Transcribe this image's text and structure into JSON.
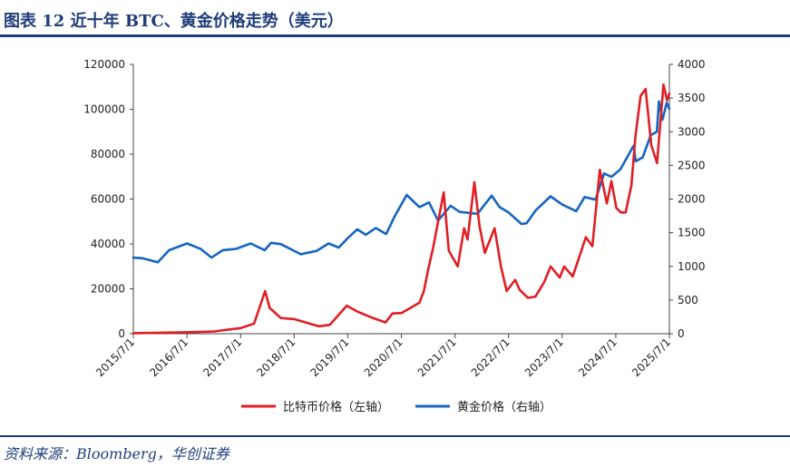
{
  "header": {
    "title": "图表  12    近十年 BTC、黄金价格走势（美元）"
  },
  "footer": {
    "source": "资料来源：Bloomberg，华创证券"
  },
  "colors": {
    "btc": "#e01e25",
    "gold": "#1565c0",
    "brand": "#1f3d7a"
  },
  "chart_data": {
    "type": "line",
    "legend_position": "bottom",
    "grid": false,
    "x_ticks": [
      "2015/7/1",
      "2016/7/1",
      "2017/7/1",
      "2018/7/1",
      "2019/7/1",
      "2020/7/1",
      "2021/7/1",
      "2022/7/1",
      "2023/7/1",
      "2024/7/1",
      "2025/7/1"
    ],
    "xlim": [
      "2015/7/1",
      "2025/7/1"
    ],
    "y_left": {
      "lim": [
        0,
        120000
      ],
      "ticks": [
        "0",
        "20000",
        "40000",
        "60000",
        "80000",
        "100000",
        "120000"
      ]
    },
    "y_right": {
      "lim": [
        0,
        4000
      ],
      "ticks": [
        "0",
        "500",
        "1000",
        "1500",
        "2000",
        "2500",
        "3000",
        "3500",
        "4000"
      ]
    },
    "series": [
      {
        "name": "比特币价格（左轴）",
        "axis": "left",
        "color": "#e01e25",
        "x": [
          "2015/7/1",
          "2016/1/1",
          "2016/7/1",
          "2017/1/1",
          "2017/7/1",
          "2017/10/1",
          "2017/12/15",
          "2018/1/15",
          "2018/4/1",
          "2018/7/1",
          "2018/12/15",
          "2019/3/1",
          "2019/6/25",
          "2019/9/1",
          "2019/12/15",
          "2020/3/15",
          "2020/5/1",
          "2020/7/1",
          "2020/9/1",
          "2020/11/1",
          "2020/12/1",
          "2021/1/1",
          "2021/2/1",
          "2021/4/15",
          "2021/5/20",
          "2021/6/15",
          "2021/7/20",
          "2021/9/1",
          "2021/9/25",
          "2021/11/10",
          "2021/12/15",
          "2022/1/20",
          "2022/3/28",
          "2022/5/10",
          "2022/6/18",
          "2022/8/15",
          "2022/9/15",
          "2022/11/10",
          "2022/12/31",
          "2023/3/1",
          "2023/4/14",
          "2023/6/15",
          "2023/7/15",
          "2023/9/11",
          "2023/10/25",
          "2023/12/10",
          "2024/1/23",
          "2024/3/14",
          "2024/5/1",
          "2024/6/1",
          "2024/7/5",
          "2024/8/5",
          "2024/9/6",
          "2024/10/15",
          "2024/11/12",
          "2024/12/17",
          "2025/1/20",
          "2025/2/28",
          "2025/4/8",
          "2025/5/22",
          "2025/6/15",
          "2025/7/1"
        ],
        "y": [
          260,
          430,
          650,
          1000,
          2500,
          4500,
          19000,
          11500,
          7000,
          6500,
          3300,
          3900,
          12500,
          10000,
          7100,
          5000,
          9000,
          9200,
          11500,
          13800,
          19000,
          29000,
          38000,
          63000,
          37000,
          34000,
          30000,
          47000,
          42000,
          67500,
          48000,
          36000,
          47000,
          30000,
          19000,
          24000,
          19500,
          16000,
          16500,
          23000,
          30000,
          25000,
          30000,
          25500,
          34000,
          43000,
          39000,
          73000,
          58000,
          68000,
          56000,
          54000,
          54000,
          66000,
          88000,
          106000,
          109000,
          84000,
          76000,
          111000,
          104000,
          107000
        ]
      },
      {
        "name": "黄金价格（右轴）",
        "axis": "right",
        "color": "#1565c0",
        "x": [
          "2015/7/1",
          "2015/9/1",
          "2015/12/15",
          "2016/3/1",
          "2016/7/1",
          "2016/10/1",
          "2016/12/15",
          "2017/3/1",
          "2017/6/1",
          "2017/9/8",
          "2017/12/12",
          "2018/1/25",
          "2018/4/1",
          "2018/8/15",
          "2018/12/1",
          "2019/2/20",
          "2019/5/1",
          "2019/7/1",
          "2019/9/4",
          "2019/11/1",
          "2020/1/8",
          "2020/3/19",
          "2020/5/15",
          "2020/8/6",
          "2020/11/1",
          "2021/1/5",
          "2021/3/8",
          "2021/6/1",
          "2021/8/1",
          "2021/12/1",
          "2022/3/8",
          "2022/5/1",
          "2022/7/1",
          "2022/9/27",
          "2022/11/1",
          "2023/1/1",
          "2023/4/13",
          "2023/7/1",
          "2023/10/5",
          "2023/12/1",
          "2024/2/14",
          "2024/4/12",
          "2024/6/1",
          "2024/8/1",
          "2024/10/30",
          "2024/11/14",
          "2024/12/31",
          "2025/2/24",
          "2025/4/7",
          "2025/4/21",
          "2025/5/15",
          "2025/6/13",
          "2025/7/1"
        ],
        "y": [
          1130,
          1120,
          1060,
          1240,
          1340,
          1260,
          1130,
          1240,
          1260,
          1340,
          1240,
          1350,
          1330,
          1180,
          1230,
          1340,
          1280,
          1420,
          1550,
          1470,
          1570,
          1480,
          1740,
          2060,
          1880,
          1950,
          1680,
          1900,
          1810,
          1780,
          2050,
          1880,
          1800,
          1630,
          1640,
          1830,
          2040,
          1920,
          1820,
          2030,
          1990,
          2380,
          2330,
          2440,
          2790,
          2560,
          2620,
          2950,
          3000,
          3450,
          3180,
          3430,
          3340
        ]
      }
    ]
  }
}
